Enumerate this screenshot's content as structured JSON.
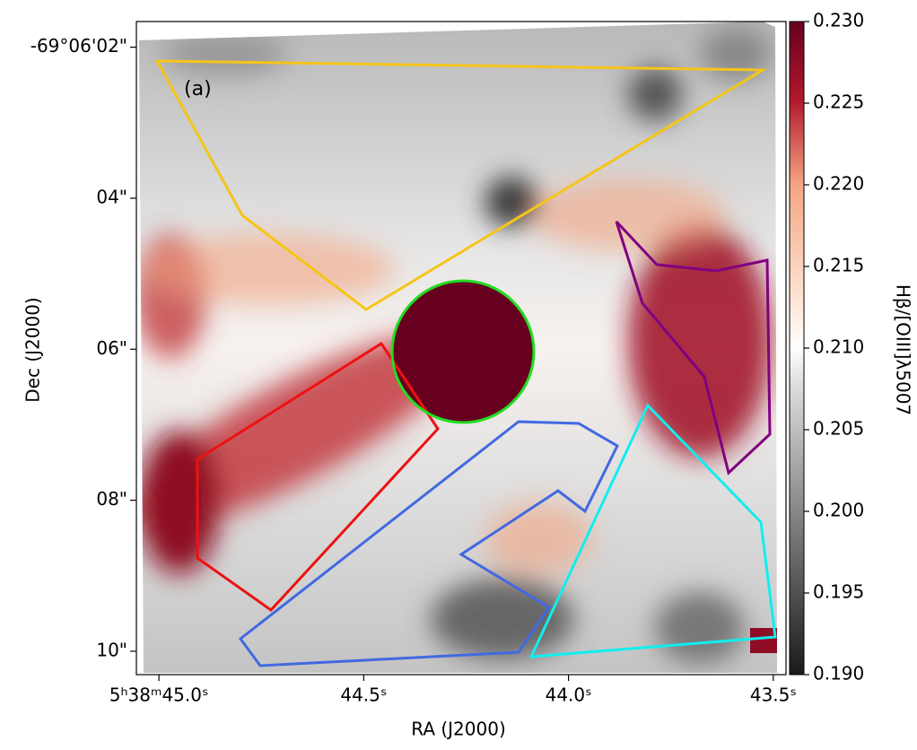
{
  "chart_data": {
    "type": "image",
    "annotation": "(a)",
    "xlabel": "RA (J2000)",
    "ylabel": "Dec (J2000)",
    "colorbar_label": "Hβ/[OIII]λ5007",
    "xlim": [
      45.055,
      43.469
    ],
    "xticks": [
      {
        "value": 45.0,
        "label": "5ʰ38ᵐ45.0ˢ"
      },
      {
        "value": 44.5,
        "label": "44.5ˢ"
      },
      {
        "value": 44.0,
        "label": "44.0ˢ"
      },
      {
        "value": 43.5,
        "label": "43.5ˢ"
      }
    ],
    "ylim": [
      1.66,
      10.31
    ],
    "yticks": [
      {
        "value": 2,
        "label": "-69°06'02\""
      },
      {
        "value": 4,
        "label": "04\""
      },
      {
        "value": 6,
        "label": "06\""
      },
      {
        "value": 8,
        "label": "08\""
      },
      {
        "value": 10,
        "label": "10\""
      }
    ],
    "clim": [
      0.19,
      0.23
    ],
    "cticks": [
      {
        "value": 0.19,
        "label": "0.190"
      },
      {
        "value": 0.195,
        "label": "0.195"
      },
      {
        "value": 0.2,
        "label": "0.200"
      },
      {
        "value": 0.205,
        "label": "0.205"
      },
      {
        "value": 0.21,
        "label": "0.210"
      },
      {
        "value": 0.215,
        "label": "0.215"
      },
      {
        "value": 0.22,
        "label": "0.220"
      },
      {
        "value": 0.225,
        "label": "0.225"
      },
      {
        "value": 0.23,
        "label": "0.230"
      }
    ]
  }
}
